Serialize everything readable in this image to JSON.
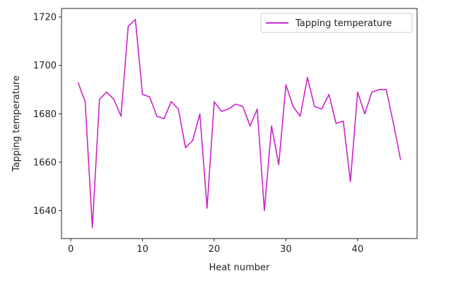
{
  "chart_data": {
    "type": "line",
    "xlabel": "Heat number",
    "ylabel": "Tapping temperature",
    "xlim": [
      -1.3,
      48.3
    ],
    "ylim": [
      1628.5,
      1723.5
    ],
    "xticks": [
      0,
      10,
      20,
      30,
      40
    ],
    "yticks": [
      1640,
      1660,
      1680,
      1700,
      1720
    ],
    "grid": false,
    "legend": {
      "placement": "top-right"
    },
    "series": [
      {
        "name": "Tapping temperature",
        "color": "#cc22cc",
        "x": [
          1,
          2,
          3,
          4,
          5,
          6,
          7,
          8,
          9,
          10,
          11,
          12,
          13,
          14,
          15,
          16,
          17,
          18,
          19,
          20,
          21,
          22,
          23,
          24,
          25,
          26,
          27,
          28,
          29,
          30,
          31,
          32,
          33,
          34,
          35,
          36,
          37,
          38,
          39,
          40,
          41,
          42,
          43,
          44,
          45,
          46
        ],
        "y": [
          1693,
          1685,
          1633,
          1686,
          1689,
          1686,
          1679,
          1716,
          1719,
          1688,
          1687,
          1679,
          1678,
          1685,
          1682,
          1666,
          1669,
          1680,
          1641,
          1685,
          1681,
          1682,
          1684,
          1683,
          1675,
          1682,
          1640,
          1675,
          1659,
          1692,
          1683,
          1679,
          1695,
          1683,
          1682,
          1688,
          1676,
          1677,
          1652,
          1689,
          1680,
          1689,
          1690,
          1690,
          1676,
          1661
        ]
      }
    ]
  }
}
